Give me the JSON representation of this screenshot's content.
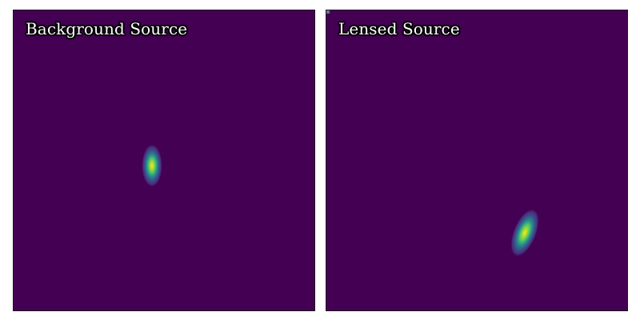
{
  "panels": [
    {
      "id": "background-source",
      "title": "Background Source"
    },
    {
      "id": "lensed-source",
      "title": "Lensed Source"
    }
  ],
  "colors": {
    "background": "#440154",
    "colormap": [
      "#440154",
      "#3b528b",
      "#21918c",
      "#5ec962",
      "#fde725"
    ]
  }
}
